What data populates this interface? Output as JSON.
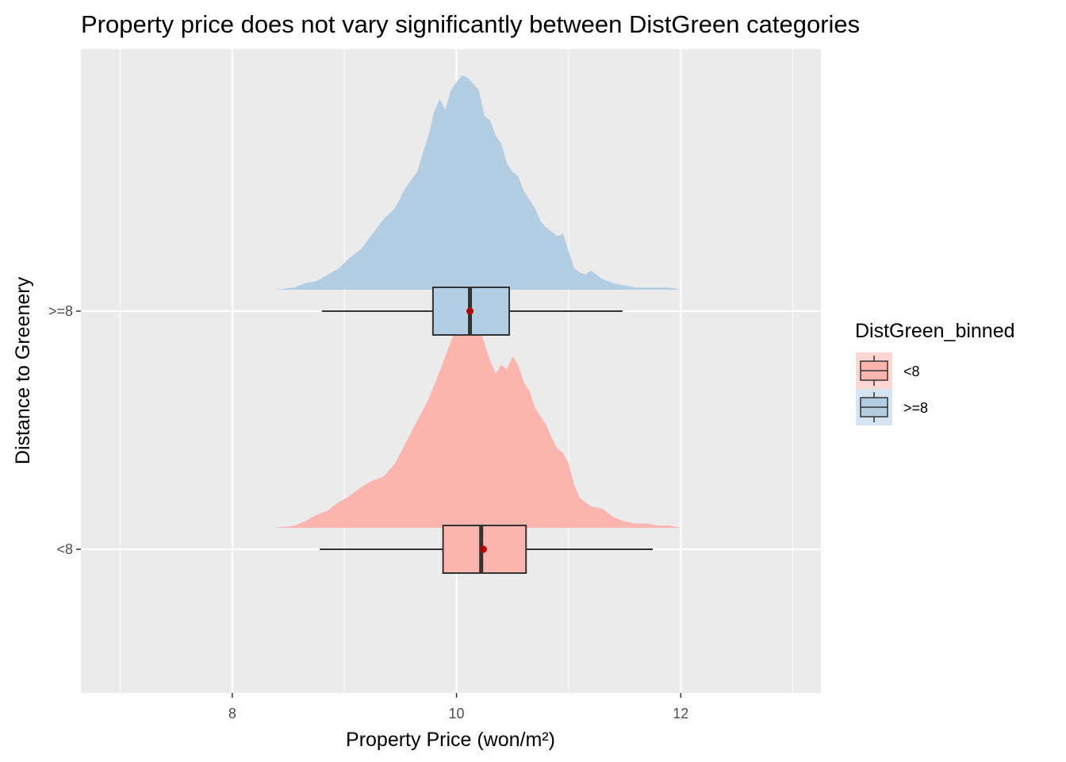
{
  "chart_data": {
    "type": "ridgeline-boxplot",
    "title": "Property price does not vary significantly between DistGreen categories",
    "xlabel": "Property Price (won/m²)",
    "ylabel": "Distance to Greenery",
    "xlim": [
      6.65,
      13.25
    ],
    "x_major_ticks": [
      8,
      10,
      12
    ],
    "x_minor_ticks": [
      7,
      9,
      11,
      13
    ],
    "categories": [
      "<8",
      ">=8"
    ],
    "grid": true,
    "legend": {
      "title": "DistGreen_binned",
      "position": "right",
      "entries": [
        {
          "label": "<8",
          "color": "#FBB4AE"
        },
        {
          "label": ">=8",
          "color": "#B3CDE3"
        }
      ]
    },
    "series": [
      {
        "name": "<8",
        "color": "#FBB4AE",
        "box": {
          "whisker_low": 8.78,
          "q1": 9.88,
          "median": 10.22,
          "q3": 10.62,
          "whisker_high": 11.75,
          "mean": 10.24
        },
        "density": {
          "x": [
            8.37,
            8.55,
            8.65,
            8.75,
            8.85,
            8.95,
            9.05,
            9.15,
            9.25,
            9.35,
            9.45,
            9.55,
            9.65,
            9.75,
            9.85,
            9.9,
            9.95,
            10.0,
            10.05,
            10.1,
            10.15,
            10.2,
            10.25,
            10.3,
            10.35,
            10.4,
            10.45,
            10.5,
            10.55,
            10.6,
            10.65,
            10.7,
            10.75,
            10.8,
            10.85,
            10.9,
            10.95,
            11.0,
            11.05,
            11.1,
            11.2,
            11.3,
            11.4,
            11.5,
            11.6,
            11.7,
            11.8,
            11.9,
            12.0,
            12.1,
            12.2,
            12.3
          ],
          "y": [
            0.0,
            0.01,
            0.03,
            0.06,
            0.08,
            0.12,
            0.15,
            0.19,
            0.22,
            0.24,
            0.3,
            0.4,
            0.5,
            0.6,
            0.73,
            0.8,
            0.87,
            0.94,
            0.98,
            1.0,
            0.98,
            0.94,
            0.86,
            0.78,
            0.72,
            0.76,
            0.74,
            0.8,
            0.76,
            0.68,
            0.64,
            0.56,
            0.52,
            0.48,
            0.42,
            0.37,
            0.35,
            0.3,
            0.2,
            0.14,
            0.1,
            0.09,
            0.05,
            0.03,
            0.02,
            0.02,
            0.01,
            0.01,
            0.0,
            0.0,
            0.0,
            0.0
          ]
        }
      },
      {
        "name": ">=8",
        "color": "#B3CDE3",
        "box": {
          "whisker_low": 8.8,
          "q1": 9.79,
          "median": 10.12,
          "q3": 10.47,
          "whisker_high": 11.48,
          "mean": 10.12
        },
        "density": {
          "x": [
            8.38,
            8.55,
            8.65,
            8.75,
            8.85,
            8.95,
            9.05,
            9.15,
            9.25,
            9.35,
            9.45,
            9.55,
            9.65,
            9.7,
            9.75,
            9.8,
            9.85,
            9.9,
            9.95,
            10.0,
            10.05,
            10.1,
            10.15,
            10.2,
            10.25,
            10.3,
            10.35,
            10.4,
            10.45,
            10.5,
            10.55,
            10.6,
            10.65,
            10.7,
            10.75,
            10.8,
            10.85,
            10.9,
            10.95,
            11.0,
            11.05,
            11.1,
            11.15,
            11.2,
            11.3,
            11.4,
            11.5,
            11.6,
            11.7,
            11.8,
            11.9,
            12.0,
            12.1
          ],
          "y": [
            0.0,
            0.01,
            0.03,
            0.04,
            0.07,
            0.1,
            0.15,
            0.19,
            0.26,
            0.33,
            0.38,
            0.48,
            0.55,
            0.64,
            0.72,
            0.83,
            0.89,
            0.84,
            0.93,
            0.97,
            1.0,
            0.99,
            0.96,
            0.93,
            0.81,
            0.79,
            0.72,
            0.68,
            0.59,
            0.55,
            0.53,
            0.46,
            0.42,
            0.38,
            0.32,
            0.29,
            0.27,
            0.25,
            0.26,
            0.18,
            0.1,
            0.08,
            0.07,
            0.09,
            0.05,
            0.03,
            0.02,
            0.01,
            0.01,
            0.01,
            0.01,
            0.0,
            0.0
          ]
        }
      }
    ]
  }
}
